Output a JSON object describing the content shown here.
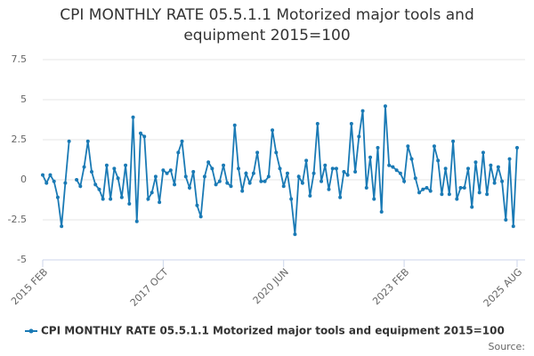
{
  "chart_data": {
    "type": "line",
    "title": "CPI MONTHLY RATE 05.5.1.1 Motorized major tools and equipment 2015=100",
    "source": "Source:",
    "categories": [
      "2015 FEB",
      null,
      null,
      null,
      null,
      null,
      null,
      null,
      null,
      null,
      null,
      null,
      null,
      null,
      null,
      null,
      null,
      null,
      null,
      null,
      null,
      null,
      null,
      null,
      null,
      null,
      null,
      null,
      null,
      null,
      null,
      null,
      "2017 OCT",
      null,
      null,
      null,
      null,
      null,
      null,
      null,
      null,
      null,
      null,
      null,
      null,
      null,
      null,
      null,
      null,
      null,
      null,
      null,
      null,
      null,
      null,
      null,
      null,
      null,
      null,
      null,
      null,
      null,
      null,
      null,
      "2020 JUN",
      null,
      null,
      null,
      null,
      null,
      null,
      null,
      null,
      null,
      null,
      null,
      null,
      null,
      null,
      null,
      null,
      null,
      null,
      null,
      null,
      null,
      null,
      null,
      null,
      null,
      null,
      null,
      null,
      null,
      null,
      null,
      "2023 FEB",
      null,
      null,
      null,
      null,
      null,
      null,
      null,
      null,
      null,
      null,
      null,
      null,
      null,
      null,
      null,
      null,
      null,
      null,
      null,
      null,
      null,
      null,
      null,
      null,
      null,
      null,
      null,
      null,
      null,
      "2025 AUG"
    ],
    "series": [
      {
        "name": "CPI MONTHLY RATE 05.5.1.1 Motorized major tools and equipment 2015=100",
        "color": "#1a7ab5",
        "values": [
          0.3,
          -0.2,
          0.3,
          -0.1,
          -1.1,
          -2.9,
          -0.2,
          2.4,
          null,
          0.0,
          -0.4,
          0.8,
          2.4,
          0.5,
          -0.3,
          -0.6,
          -1.2,
          0.9,
          -1.2,
          0.7,
          0.1,
          -1.1,
          0.9,
          -1.5,
          3.9,
          -2.6,
          2.9,
          2.7,
          -1.2,
          -0.8,
          0.2,
          -1.4,
          0.6,
          0.4,
          0.6,
          -0.3,
          1.7,
          2.4,
          0.2,
          -0.5,
          0.5,
          -1.6,
          -2.3,
          0.2,
          1.1,
          0.7,
          -0.3,
          -0.1,
          0.9,
          -0.2,
          -0.4,
          3.4,
          0.7,
          -0.7,
          0.4,
          -0.2,
          0.4,
          1.7,
          -0.1,
          -0.1,
          0.2,
          3.1,
          1.7,
          0.7,
          -0.4,
          0.4,
          -1.2,
          -3.4,
          0.2,
          -0.2,
          1.2,
          -1.0,
          0.4,
          3.5,
          -0.1,
          0.9,
          -0.6,
          0.7,
          0.7,
          -1.1,
          0.5,
          0.3,
          3.5,
          0.5,
          2.7,
          4.3,
          -0.5,
          1.4,
          -1.2,
          2.0,
          -2.0,
          4.6,
          0.9,
          0.8,
          0.6,
          0.4,
          -0.1,
          2.1,
          1.3,
          0.1,
          -0.8,
          -0.6,
          -0.5,
          -0.7,
          2.1,
          1.2,
          -0.9,
          0.7,
          -0.9,
          2.4,
          -1.2,
          -0.5,
          -0.5,
          0.7,
          -1.7,
          1.1,
          -0.8,
          1.7,
          -0.9,
          0.9,
          -0.2,
          0.8,
          -0.1,
          -2.5,
          1.3,
          -2.9,
          2.0
        ]
      }
    ],
    "ylim": [
      -5,
      7.5
    ],
    "yticks": [
      7.5,
      5,
      2.5,
      0,
      -2.5,
      -5
    ],
    "grid": true,
    "legend": "bottom"
  }
}
